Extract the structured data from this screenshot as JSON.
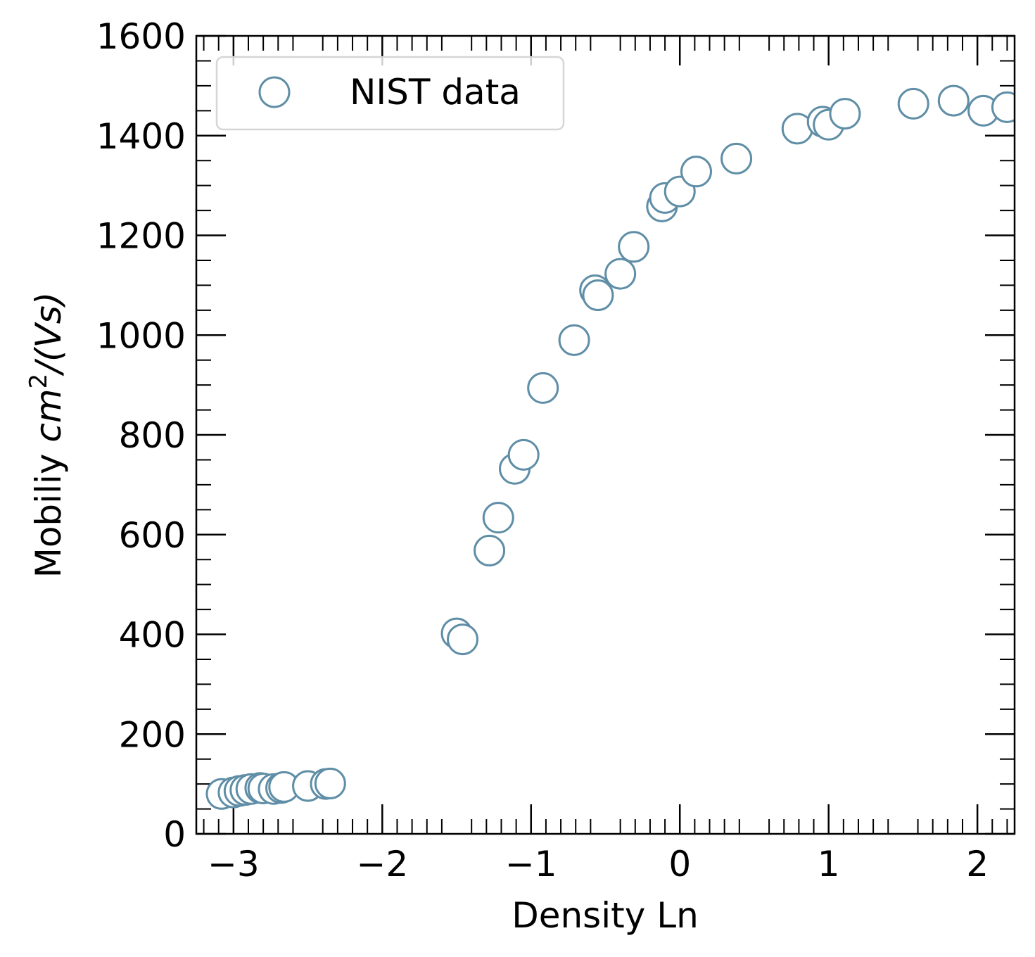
{
  "chart_data": {
    "type": "scatter",
    "xlabel": "Density Ln",
    "ylabel_plain": "Mobiliy ",
    "ylabel_math_base": "cm",
    "ylabel_math_sup": "2",
    "ylabel_math_tail": "/(Vs)",
    "xlim": [
      -3.25,
      2.25
    ],
    "ylim": [
      0,
      1600
    ],
    "x_ticks": [
      -3,
      -2,
      -1,
      0,
      1,
      2
    ],
    "x_tick_labels": [
      "−3",
      "−2",
      "−1",
      "0",
      "1",
      "2"
    ],
    "y_ticks": [
      0,
      200,
      400,
      600,
      800,
      1000,
      1200,
      1400,
      1600
    ],
    "y_tick_labels": [
      "0",
      "200",
      "400",
      "600",
      "800",
      "1000",
      "1200",
      "1400",
      "1600"
    ],
    "grid": false,
    "legend_position": "top-left",
    "series": [
      {
        "name": "NIST data",
        "marker": "hollow-circle",
        "color": "#5f8ea6",
        "x": [
          -3.08,
          -3.0,
          -2.96,
          -2.92,
          -2.88,
          -2.82,
          -2.8,
          -2.73,
          -2.68,
          -2.66,
          -2.5,
          -2.38,
          -2.35,
          -1.5,
          -1.46,
          -1.28,
          -1.22,
          -1.11,
          -1.05,
          -0.92,
          -0.71,
          -0.57,
          -0.55,
          -0.4,
          -0.31,
          -0.12,
          -0.1,
          0.0,
          0.11,
          0.38,
          0.79,
          0.96,
          1.0,
          1.11,
          1.57,
          1.84,
          2.04,
          2.2
        ],
        "y": [
          80,
          83,
          86,
          88,
          90,
          92,
          91,
          90,
          92,
          94,
          96,
          100,
          101,
          402,
          390,
          568,
          634,
          732,
          760,
          894,
          990,
          1090,
          1080,
          1123,
          1177,
          1258,
          1275,
          1288,
          1328,
          1354,
          1414,
          1428,
          1422,
          1444,
          1464,
          1470,
          1450,
          1457
        ]
      }
    ]
  }
}
